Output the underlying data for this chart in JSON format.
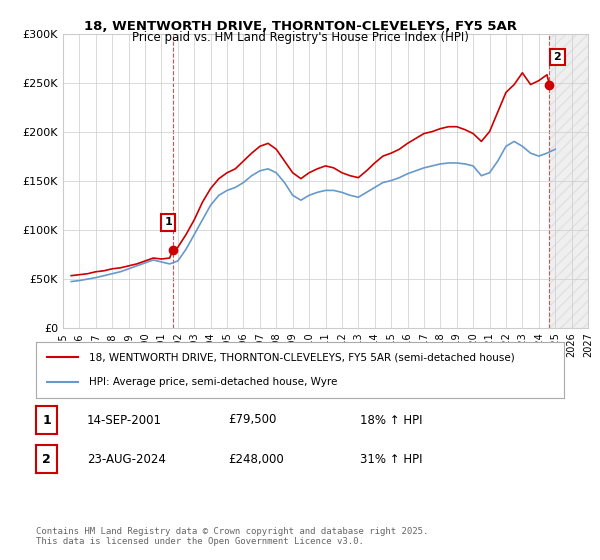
{
  "title_line1": "18, WENTWORTH DRIVE, THORNTON-CLEVELEYS, FY5 5AR",
  "title_line2": "Price paid vs. HM Land Registry's House Price Index (HPI)",
  "ylabel": "",
  "background_color": "#ffffff",
  "plot_bg_color": "#ffffff",
  "grid_color": "#cccccc",
  "line1_color": "#cc0000",
  "line2_color": "#6699cc",
  "sale1_year": 2001.71,
  "sale1_price": 79500,
  "sale2_year": 2024.64,
  "sale2_price": 248000,
  "legend1_label": "18, WENTWORTH DRIVE, THORNTON-CLEVELEYS, FY5 5AR (semi-detached house)",
  "legend2_label": "HPI: Average price, semi-detached house, Wyre",
  "annotation1_label": "1",
  "annotation2_label": "2",
  "table_rows": [
    [
      "1",
      "14-SEP-2001",
      "£79,500",
      "18% ↑ HPI"
    ],
    [
      "2",
      "23-AUG-2024",
      "£248,000",
      "31% ↑ HPI"
    ]
  ],
  "footnote": "Contains HM Land Registry data © Crown copyright and database right 2025.\nThis data is licensed under the Open Government Licence v3.0.",
  "ylim_min": 0,
  "ylim_max": 300000,
  "ytick_values": [
    0,
    50000,
    100000,
    150000,
    200000,
    250000,
    300000
  ],
  "ytick_labels": [
    "£0",
    "£50K",
    "£100K",
    "£150K",
    "£200K",
    "£250K",
    "£300K"
  ],
  "xlim_min": 1995,
  "xlim_max": 2027,
  "xtick_values": [
    1995,
    1996,
    1997,
    1998,
    1999,
    2000,
    2001,
    2002,
    2003,
    2004,
    2005,
    2006,
    2007,
    2008,
    2009,
    2010,
    2011,
    2012,
    2013,
    2014,
    2015,
    2016,
    2017,
    2018,
    2019,
    2020,
    2021,
    2022,
    2023,
    2024,
    2025,
    2026,
    2027
  ],
  "hpi_data": {
    "years": [
      1995.5,
      1996.0,
      1996.5,
      1997.0,
      1997.5,
      1998.0,
      1998.5,
      1999.0,
      1999.5,
      2000.0,
      2000.5,
      2001.0,
      2001.5,
      2002.0,
      2002.5,
      2003.0,
      2003.5,
      2004.0,
      2004.5,
      2005.0,
      2005.5,
      2006.0,
      2006.5,
      2007.0,
      2007.5,
      2008.0,
      2008.5,
      2009.0,
      2009.5,
      2010.0,
      2010.5,
      2011.0,
      2011.5,
      2012.0,
      2012.5,
      2013.0,
      2013.5,
      2014.0,
      2014.5,
      2015.0,
      2015.5,
      2016.0,
      2016.5,
      2017.0,
      2017.5,
      2018.0,
      2018.5,
      2019.0,
      2019.5,
      2020.0,
      2020.5,
      2021.0,
      2021.5,
      2022.0,
      2022.5,
      2023.0,
      2023.5,
      2024.0,
      2024.5,
      2025.0
    ],
    "values": [
      47000,
      48000,
      49500,
      51000,
      53000,
      55000,
      57000,
      60000,
      63000,
      66000,
      69000,
      67000,
      65000,
      68000,
      80000,
      95000,
      110000,
      125000,
      135000,
      140000,
      143000,
      148000,
      155000,
      160000,
      162000,
      158000,
      148000,
      135000,
      130000,
      135000,
      138000,
      140000,
      140000,
      138000,
      135000,
      133000,
      138000,
      143000,
      148000,
      150000,
      153000,
      157000,
      160000,
      163000,
      165000,
      167000,
      168000,
      168000,
      167000,
      165000,
      155000,
      158000,
      170000,
      185000,
      190000,
      185000,
      178000,
      175000,
      178000,
      182000
    ]
  },
  "price_data": {
    "years": [
      1995.5,
      1996.0,
      1996.5,
      1997.0,
      1997.5,
      1998.0,
      1998.5,
      1999.0,
      1999.5,
      2000.0,
      2000.5,
      2001.0,
      2001.5,
      2001.71,
      2002.0,
      2002.5,
      2003.0,
      2003.5,
      2004.0,
      2004.5,
      2005.0,
      2005.5,
      2006.0,
      2006.5,
      2007.0,
      2007.5,
      2008.0,
      2008.5,
      2009.0,
      2009.5,
      2010.0,
      2010.5,
      2011.0,
      2011.5,
      2012.0,
      2012.5,
      2013.0,
      2013.5,
      2014.0,
      2014.5,
      2015.0,
      2015.5,
      2016.0,
      2016.5,
      2017.0,
      2017.5,
      2018.0,
      2018.5,
      2019.0,
      2019.5,
      2020.0,
      2020.5,
      2021.0,
      2021.5,
      2022.0,
      2022.5,
      2023.0,
      2023.5,
      2024.0,
      2024.5,
      2024.64
    ],
    "values": [
      53000,
      54000,
      55000,
      57000,
      58000,
      60000,
      61000,
      63000,
      65000,
      68000,
      71000,
      70000,
      71000,
      79500,
      82000,
      95000,
      110000,
      128000,
      142000,
      152000,
      158000,
      162000,
      170000,
      178000,
      185000,
      188000,
      182000,
      170000,
      158000,
      152000,
      158000,
      162000,
      165000,
      163000,
      158000,
      155000,
      153000,
      160000,
      168000,
      175000,
      178000,
      182000,
      188000,
      193000,
      198000,
      200000,
      203000,
      205000,
      205000,
      202000,
      198000,
      190000,
      200000,
      220000,
      240000,
      248000,
      260000,
      248000,
      252000,
      258000,
      248000
    ]
  }
}
